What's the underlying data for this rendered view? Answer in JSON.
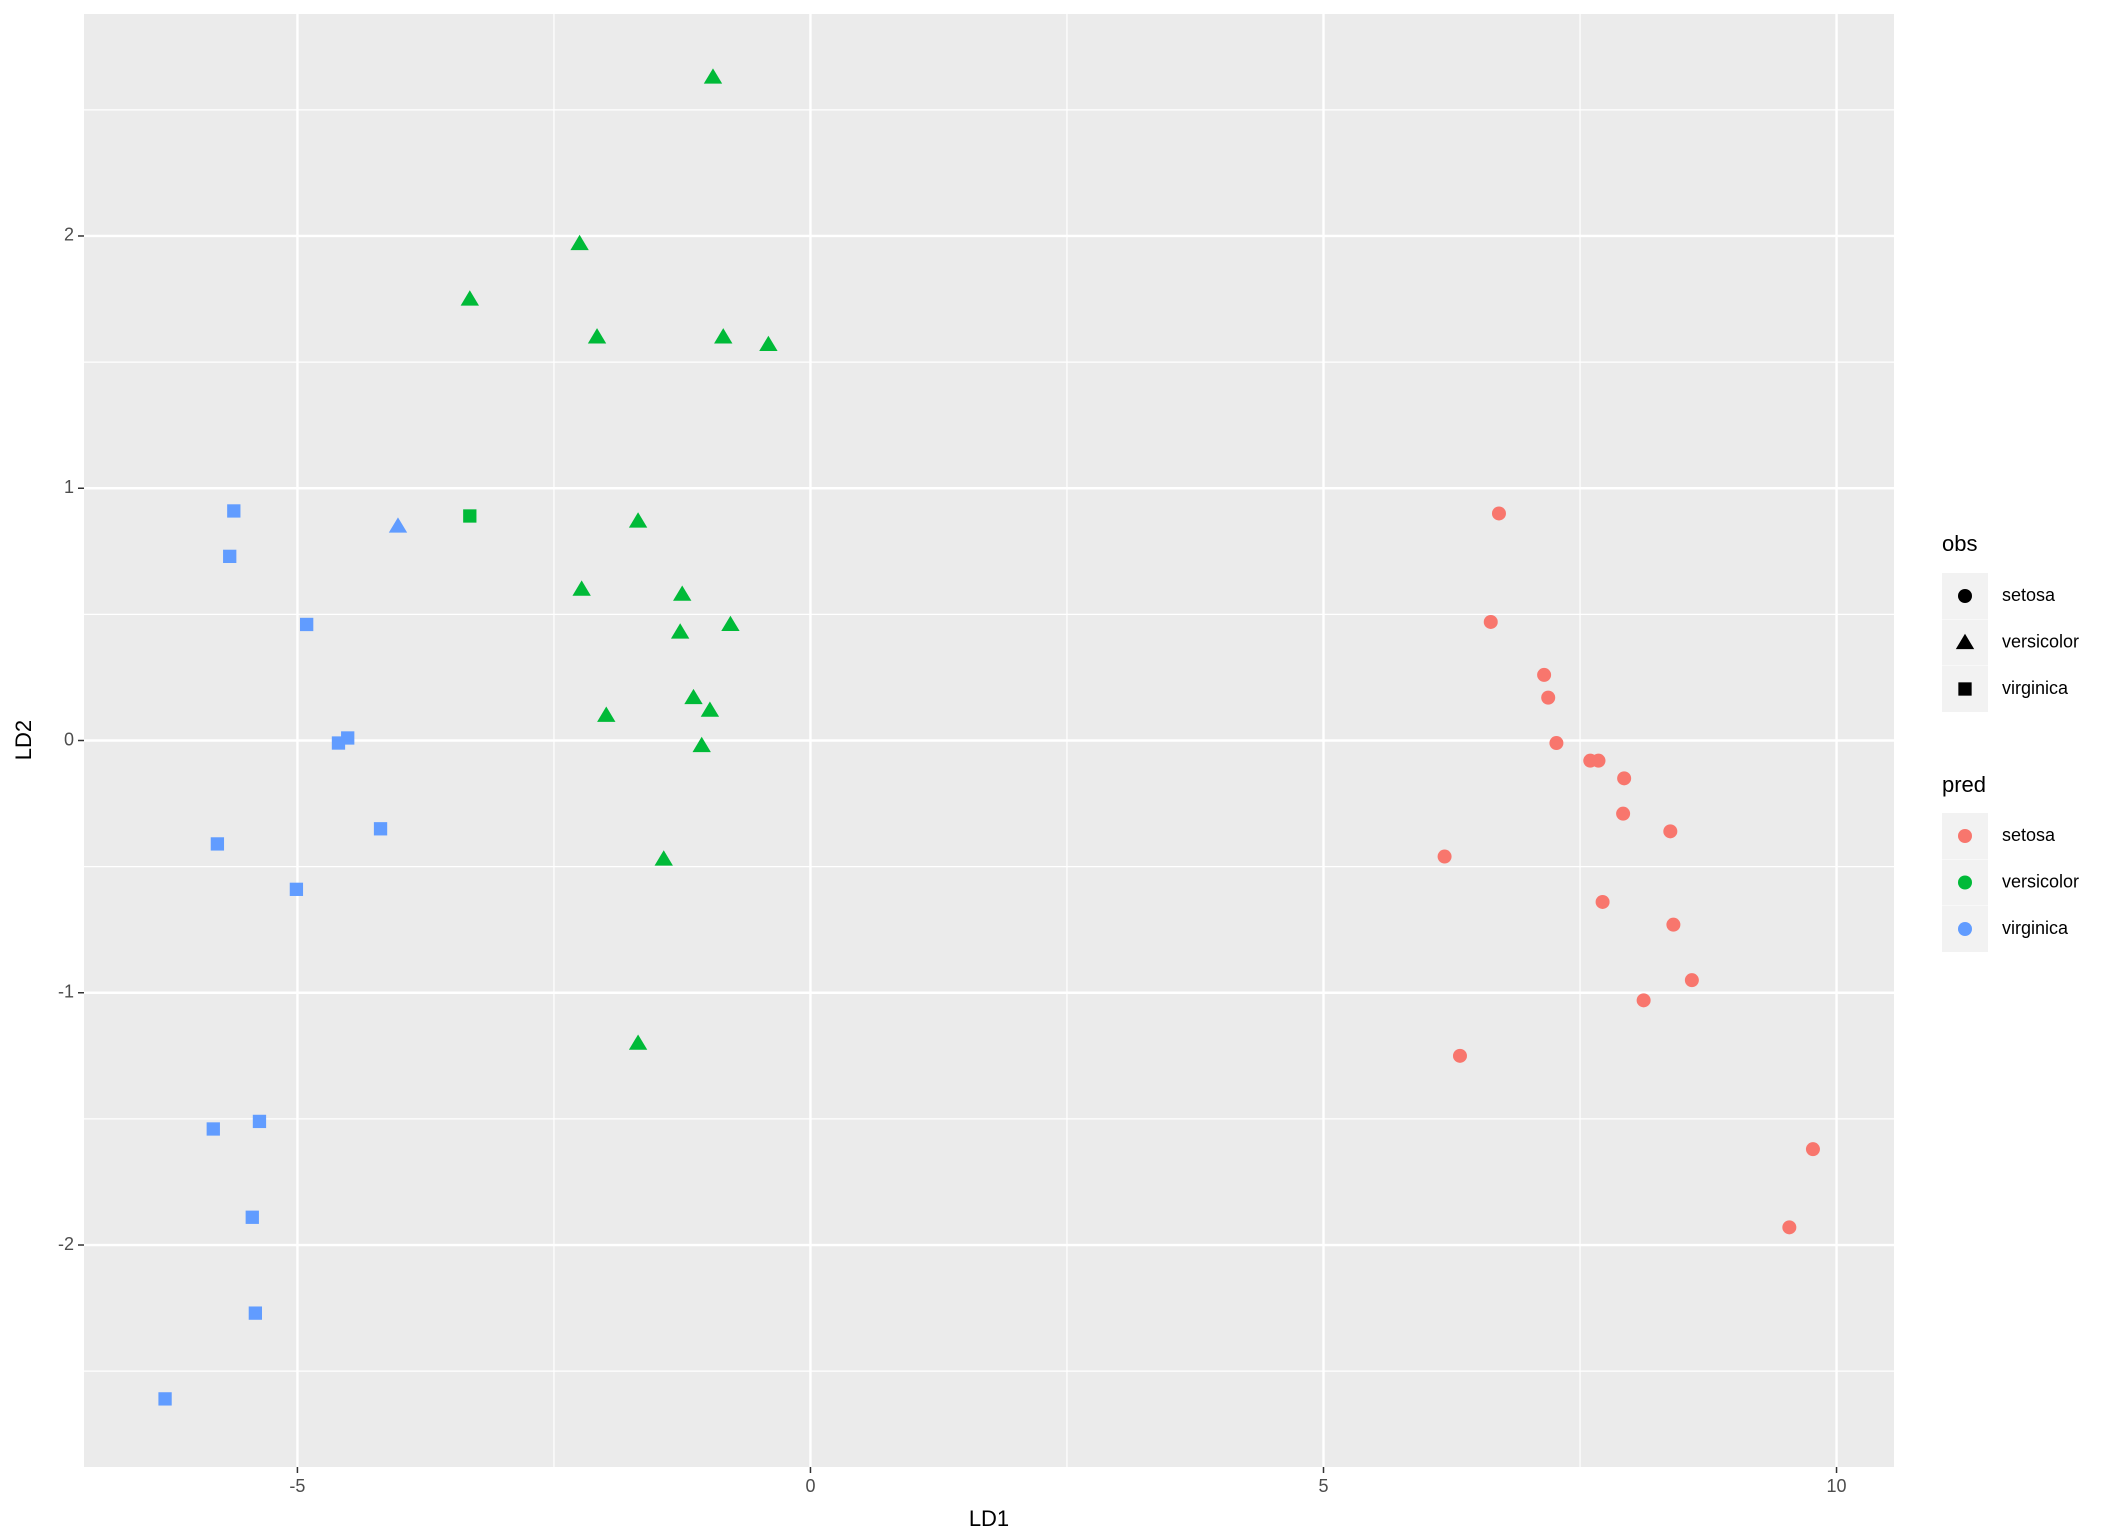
{
  "chart_data": {
    "type": "scatter",
    "x_label": "LD1",
    "y_label": "LD2",
    "xlim": [
      -7.08,
      10.56
    ],
    "ylim": [
      -2.88,
      2.88
    ],
    "xticks": [
      -5,
      0,
      5,
      10
    ],
    "yticks": [
      -2,
      -1,
      0,
      1,
      2
    ],
    "grid": true,
    "legend_position": "right",
    "obs": {
      "title": "obs",
      "levels": [
        "setosa",
        "versicolor",
        "virginica"
      ],
      "shapes": [
        "circle",
        "triangle",
        "square"
      ]
    },
    "pred": {
      "title": "pred",
      "levels": [
        "setosa",
        "versicolor",
        "virginica"
      ],
      "colors": [
        "#f8766d",
        "#00ba38",
        "#619cff"
      ]
    },
    "series": [
      {
        "obs": "setosa",
        "pred": "setosa",
        "x": [
          6.71,
          6.63,
          7.15,
          7.19,
          7.27,
          7.6,
          7.68,
          7.93,
          7.92,
          8.38,
          6.18,
          7.72,
          8.41,
          8.59,
          8.12,
          6.33,
          9.77,
          9.54
        ],
        "y": [
          0.9,
          0.47,
          0.26,
          0.17,
          -0.01,
          -0.08,
          -0.08,
          -0.15,
          -0.29,
          -0.36,
          -0.46,
          -0.64,
          -0.73,
          -0.95,
          -1.03,
          -1.25,
          -1.62,
          -1.93
        ]
      },
      {
        "obs": "versicolor",
        "pred": "versicolor",
        "x": [
          -0.95,
          -2.25,
          -3.32,
          -2.08,
          -0.85,
          -0.41,
          -1.68,
          -2.23,
          -1.25,
          -1.27,
          -0.78,
          -1.99,
          -1.14,
          -0.98,
          -1.06,
          -1.43,
          -1.68
        ],
        "y": [
          2.63,
          1.97,
          1.75,
          1.6,
          1.6,
          1.57,
          0.87,
          0.6,
          0.58,
          0.43,
          0.46,
          0.1,
          0.17,
          0.12,
          -0.02,
          -0.47,
          -1.2
        ]
      },
      {
        "obs": "versicolor",
        "pred": "virginica",
        "x": [
          -4.02
        ],
        "y": [
          0.85
        ]
      },
      {
        "obs": "virginica",
        "pred": "versicolor",
        "x": [
          -3.32
        ],
        "y": [
          0.89
        ]
      },
      {
        "obs": "virginica",
        "pred": "virginica",
        "x": [
          -5.62,
          -5.66,
          -4.91,
          -4.6,
          -4.51,
          -4.19,
          -5.78,
          -5.01,
          -5.82,
          -5.37,
          -5.44,
          -5.41,
          -6.29
        ],
        "y": [
          0.91,
          0.73,
          0.46,
          -0.01,
          0.01,
          -0.35,
          -0.41,
          -0.59,
          -1.54,
          -1.51,
          -1.89,
          -2.27,
          -2.61
        ]
      }
    ]
  }
}
